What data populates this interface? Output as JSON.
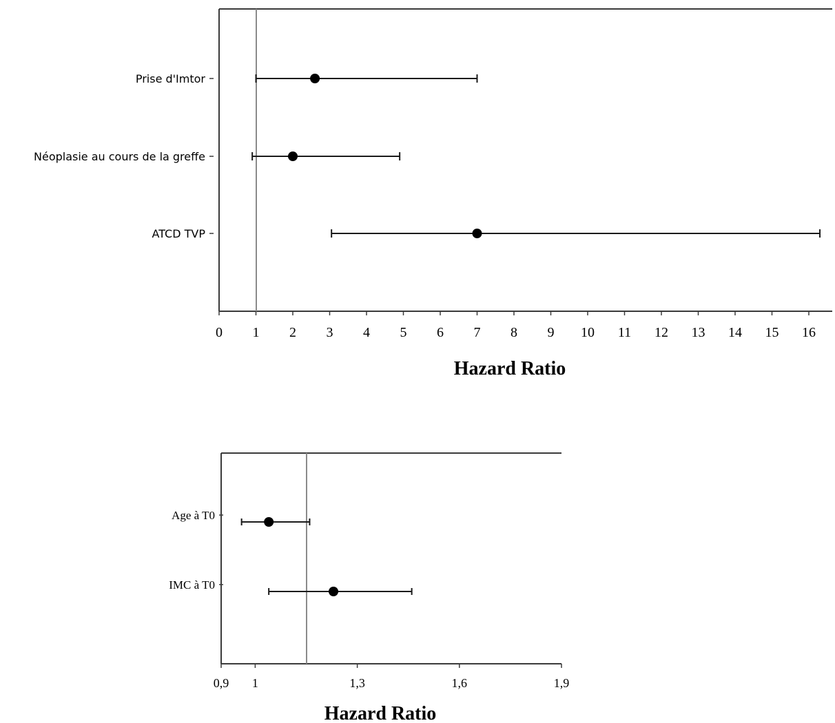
{
  "chart_data": [
    {
      "type": "forest",
      "xlabel": "Hazard Ratio",
      "xticks": [
        "0",
        "1",
        "2",
        "3",
        "4",
        "5",
        "6",
        "7",
        "8",
        "9",
        "10",
        "11",
        "12",
        "13",
        "14",
        "15",
        "16"
      ],
      "xlim": [
        0,
        16.4
      ],
      "reference_line": 1,
      "grid": false,
      "rows": [
        {
          "label": "Prise d'Imtor",
          "hr": 2.6,
          "ci_low": 1.0,
          "ci_high": 7.0
        },
        {
          "label": "Néoplasie au cours de la greffe",
          "hr": 2.0,
          "ci_low": 0.9,
          "ci_high": 4.9
        },
        {
          "label": "ATCD TVP",
          "hr": 7.0,
          "ci_low": 3.05,
          "ci_high": 16.3
        }
      ]
    },
    {
      "type": "forest",
      "xlabel": "Hazard Ratio",
      "xticks": [
        "0,9",
        "1",
        "1,3",
        "1,6",
        "1,9"
      ],
      "xlim": [
        0.9,
        1.9
      ],
      "reference_line": 1,
      "grid": false,
      "rows": [
        {
          "label": "Age à T0",
          "hr": 1.04,
          "ci_low": 0.96,
          "ci_high": 1.16
        },
        {
          "label": "IMC à T0",
          "hr": 1.23,
          "ci_low": 1.04,
          "ci_high": 1.46
        }
      ]
    }
  ]
}
